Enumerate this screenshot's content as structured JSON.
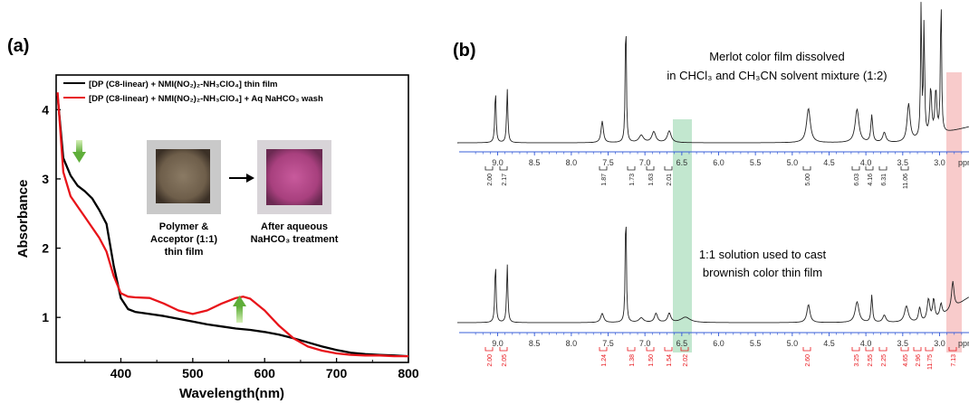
{
  "panel_a": {
    "label": "(a)",
    "xlabel": "Wavelength(nm)",
    "ylabel": "Absorbance",
    "legend": [
      {
        "text": "[DP (C8-linear) + NMI(NO₂)₂-NH₃ClO₄] thin film",
        "color": "#000000"
      },
      {
        "text": "[DP (C8-linear) + NMI(NO₂)₂-NH₃ClO₄] + Aq NaHCO₃ wash",
        "color": "#e8141a"
      }
    ],
    "photo_left_caption": [
      "Polymer &",
      "Acceptor (1:1)",
      "thin  film"
    ],
    "photo_right_caption": [
      "After aqueous",
      "NaHCO₃ treatment"
    ]
  },
  "panel_b": {
    "label": "(b)",
    "top_caption": [
      "Merlot color film dissolved",
      "in CHCl₃ and CH₃CN solvent mixture (1:2)"
    ],
    "bottom_caption": [
      "1:1 solution used to cast",
      "brownish color thin film"
    ],
    "axis_unit": "ppm",
    "top_integrals": [
      "2.00",
      "2.17",
      "1.87",
      "1.73",
      "1.63",
      "2.01",
      "5.00",
      "6.03",
      "4.16",
      "6.31",
      "11.06"
    ],
    "bottom_integrals": [
      "2.00",
      "2.05",
      "1.24",
      "1.38",
      "1.50",
      "1.54",
      "2.02",
      "2.60",
      "3.25",
      "2.55",
      "2.25",
      "4.65",
      "2.96",
      "11.75",
      "7.13"
    ],
    "green_band_color": "#8fd3a8",
    "red_band_color": "#f3a1a1"
  },
  "chart_data": [
    {
      "type": "line",
      "xlabel": "Wavelength(nm)",
      "ylabel": "Absorbance",
      "xlim": [
        310,
        800
      ],
      "ylim": [
        0.35,
        4.5
      ],
      "xticks": [
        400,
        500,
        600,
        700,
        800
      ],
      "yticks": [
        1,
        2,
        3,
        4
      ],
      "series": [
        {
          "name": "[DP (C8-linear) + NMI(NO₂)₂-NH₃ClO₄] thin film",
          "color": "#000000",
          "x": [
            312,
            320,
            330,
            340,
            350,
            360,
            370,
            380,
            390,
            400,
            410,
            420,
            440,
            460,
            480,
            500,
            520,
            540,
            560,
            580,
            600,
            620,
            640,
            660,
            680,
            700,
            720,
            740,
            760,
            780,
            800
          ],
          "y": [
            4.2,
            3.3,
            3.05,
            2.9,
            2.82,
            2.72,
            2.55,
            2.35,
            1.75,
            1.28,
            1.12,
            1.08,
            1.05,
            1.02,
            0.98,
            0.94,
            0.9,
            0.87,
            0.84,
            0.82,
            0.79,
            0.75,
            0.7,
            0.64,
            0.58,
            0.53,
            0.49,
            0.47,
            0.46,
            0.45,
            0.44
          ]
        },
        {
          "name": "[DP (C8-linear) + NMI(NO₂)₂-NH₃ClO₄] + Aq NaHCO₃ wash",
          "color": "#e8141a",
          "x": [
            312,
            320,
            330,
            340,
            350,
            360,
            370,
            380,
            390,
            400,
            410,
            420,
            440,
            460,
            480,
            500,
            520,
            540,
            560,
            570,
            580,
            600,
            620,
            640,
            660,
            680,
            700,
            720,
            740,
            760,
            780,
            800
          ],
          "y": [
            4.25,
            3.1,
            2.75,
            2.6,
            2.45,
            2.3,
            2.15,
            1.95,
            1.6,
            1.35,
            1.3,
            1.29,
            1.28,
            1.2,
            1.1,
            1.05,
            1.1,
            1.2,
            1.28,
            1.3,
            1.27,
            1.1,
            0.88,
            0.7,
            0.58,
            0.52,
            0.48,
            0.46,
            0.45,
            0.45,
            0.44,
            0.44
          ]
        }
      ]
    },
    {
      "type": "line",
      "title": "Merlot color film dissolved in CHCl₃ and CH₃CN solvent mixture (1:2)",
      "xlabel": "ppm",
      "xlim": [
        9.4,
        2.6
      ],
      "xticks": [
        "9.0",
        "8.5",
        "8.0",
        "7.5",
        "7.0",
        "6.5",
        "6.0",
        "5.5",
        "5.0",
        "4.5",
        "4.0",
        "3.5",
        "3.0"
      ]
    },
    {
      "type": "line",
      "title": "1:1 solution used to cast brownish color thin film",
      "xlabel": "ppm",
      "xlim": [
        9.4,
        2.6
      ],
      "xticks": [
        "9.0",
        "8.5",
        "8.0",
        "7.5",
        "7.0",
        "6.5",
        "6.0",
        "5.5",
        "5.0",
        "4.5",
        "4.0",
        "3.5",
        "3.0"
      ]
    }
  ]
}
